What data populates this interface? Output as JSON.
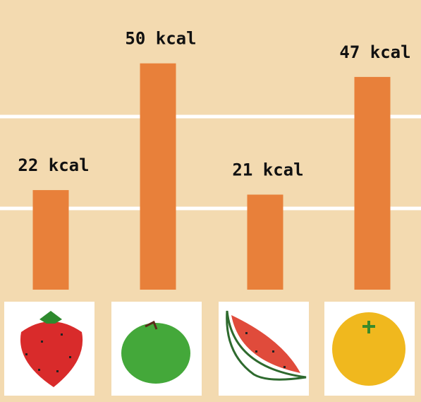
{
  "chart_data": {
    "type": "bar",
    "categories": [
      null,
      null,
      null,
      null
    ],
    "values": [
      22,
      50,
      21,
      47
    ],
    "value_labels": [
      "22 kcal",
      "50 kcal",
      "21 kcal",
      "47 kcal"
    ],
    "color": "#e8803a",
    "ylim": [
      0,
      64
    ]
  }
}
